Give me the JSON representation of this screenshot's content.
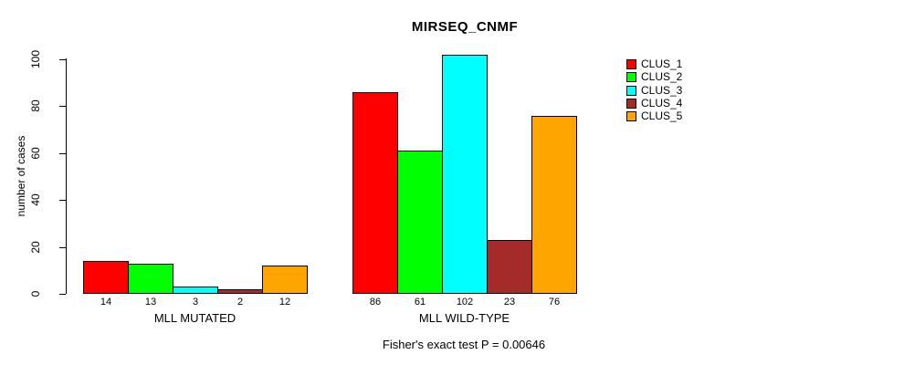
{
  "chart_data": {
    "type": "bar",
    "title": "MIRSEQ_CNMF",
    "ylabel": "number of cases",
    "xlabel": "",
    "annotation": "Fisher's exact test P = 0.00646",
    "categories": [
      "MLL MUTATED",
      "MLL WILD-TYPE"
    ],
    "series": [
      {
        "name": "CLUS_1",
        "color": "#FF0000",
        "values": [
          14,
          86
        ]
      },
      {
        "name": "CLUS_2",
        "color": "#00FF00",
        "values": [
          13,
          61
        ]
      },
      {
        "name": "CLUS_3",
        "color": "#00FFFF",
        "values": [
          3,
          102
        ]
      },
      {
        "name": "CLUS_4",
        "color": "#A52A2A",
        "values": [
          2,
          23
        ]
      },
      {
        "name": "CLUS_5",
        "color": "#FFA500",
        "values": [
          12,
          76
        ]
      }
    ],
    "bar_value_labels": {
      "MLL MUTATED": [
        14,
        13,
        3,
        2,
        12
      ],
      "MLL WILD-TYPE": [
        86,
        61,
        102,
        23,
        76
      ]
    },
    "y_ticks": [
      0,
      20,
      40,
      60,
      80,
      100
    ],
    "ylim": [
      0,
      100
    ],
    "grid": false,
    "legend_position": "topright",
    "legend_entries": [
      "CLUS_1",
      "CLUS_2",
      "CLUS_3",
      "CLUS_4",
      "CLUS_5"
    ],
    "bar_border_color": "#000000",
    "axis_color": "#000000",
    "text_color": "#000000",
    "background_color": "#FFFFFF"
  }
}
